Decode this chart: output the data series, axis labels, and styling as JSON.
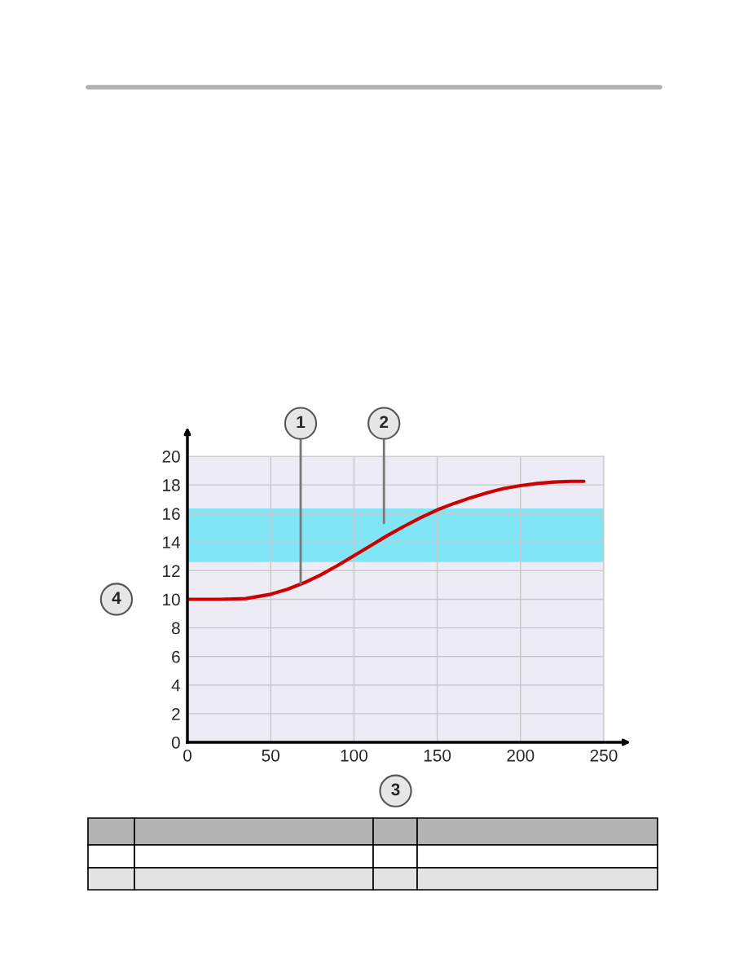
{
  "chart_data": {
    "type": "line",
    "xlabel": "3",
    "ylabel": "4",
    "x": [
      0,
      20,
      35,
      50,
      60,
      70,
      80,
      90,
      100,
      110,
      120,
      130,
      140,
      150,
      160,
      170,
      180,
      190,
      200,
      210,
      220,
      230,
      238
    ],
    "series": [
      {
        "color": "#cc0000",
        "values": [
          10,
          10,
          10.05,
          10.35,
          10.7,
          11.15,
          11.7,
          12.35,
          13.05,
          13.75,
          14.45,
          15.1,
          15.7,
          16.25,
          16.7,
          17.1,
          17.45,
          17.75,
          17.95,
          18.1,
          18.2,
          18.25,
          18.25
        ]
      }
    ],
    "bands": [
      {
        "axis": "y",
        "from": 12.6,
        "to": 16.35,
        "color": "#80e6f5",
        "label": "2"
      }
    ],
    "annotations": [
      {
        "text": "1",
        "x": 68,
        "y": 11.1
      }
    ],
    "xlim": [
      0,
      250
    ],
    "ylim": [
      0,
      20
    ],
    "xticks": [
      0,
      50,
      100,
      150,
      200,
      250
    ],
    "yticks": [
      0,
      2,
      4,
      6,
      8,
      10,
      12,
      14,
      16,
      18,
      20
    ],
    "grid": true,
    "marker": "none",
    "line_style": "solid"
  }
}
